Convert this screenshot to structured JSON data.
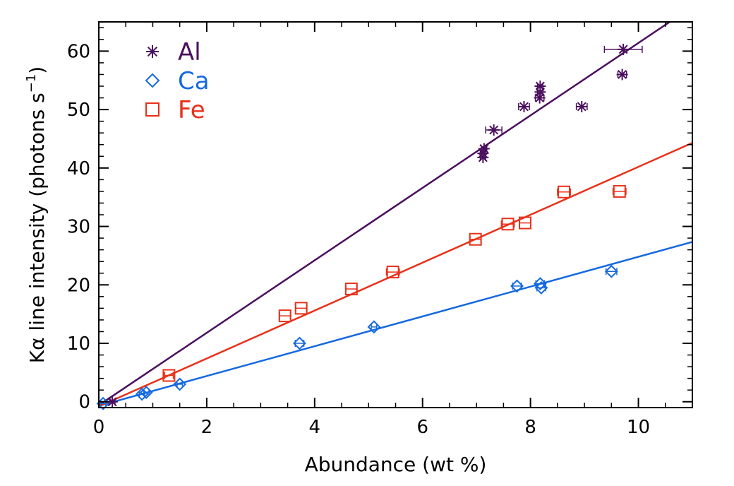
{
  "chart_data": {
    "type": "scatter",
    "title": "",
    "xlabel": "Abundance (wt %)",
    "ylabel_main": "Kα line intensity (photons s",
    "ylabel_sup": "−1",
    "ylabel_close": ")",
    "xlim": [
      0,
      11
    ],
    "ylim": [
      -1,
      65
    ],
    "x_ticks": [
      0,
      2,
      4,
      6,
      8,
      10
    ],
    "y_ticks": [
      0,
      10,
      20,
      30,
      40,
      50,
      60
    ],
    "legend_position": "top-left",
    "series": [
      {
        "name": "Al",
        "marker": "asterisk",
        "color": "#4b0f5e",
        "fit_slope": 6.2,
        "fit_intercept": -0.6,
        "points": [
          {
            "x": 0.25,
            "y": 0.0,
            "xerr": 0.05
          },
          {
            "x": 7.12,
            "y": 41.8,
            "xerr": 0.05
          },
          {
            "x": 7.12,
            "y": 42.5,
            "xerr": 0.05
          },
          {
            "x": 7.14,
            "y": 43.3,
            "xerr": 0.05
          },
          {
            "x": 7.32,
            "y": 46.5,
            "xerr": 0.15
          },
          {
            "x": 7.88,
            "y": 50.5,
            "xerr": 0.1
          },
          {
            "x": 8.17,
            "y": 52.0,
            "xerr": 0.08
          },
          {
            "x": 8.18,
            "y": 53.0,
            "xerr": 0.05
          },
          {
            "x": 8.18,
            "y": 54.0,
            "xerr": 0.05
          },
          {
            "x": 8.95,
            "y": 50.5,
            "xerr": 0.1
          },
          {
            "x": 9.7,
            "y": 56.0,
            "xerr": 0.08
          },
          {
            "x": 9.72,
            "y": 60.3,
            "xerr": 0.35
          }
        ]
      },
      {
        "name": "Ca",
        "marker": "diamond",
        "color": "#1569e0",
        "fit_slope": 2.55,
        "fit_intercept": -0.7,
        "points": [
          {
            "x": 0.08,
            "y": -0.3,
            "xerr": 0.05
          },
          {
            "x": 0.8,
            "y": 1.3,
            "xerr": 0.05
          },
          {
            "x": 0.88,
            "y": 1.6,
            "xerr": 0.05
          },
          {
            "x": 1.5,
            "y": 3.0,
            "xerr": 0.05
          },
          {
            "x": 3.72,
            "y": 10.0,
            "xerr": 0.08
          },
          {
            "x": 5.1,
            "y": 12.8,
            "xerr": 0.05
          },
          {
            "x": 7.75,
            "y": 19.8,
            "xerr": 0.08
          },
          {
            "x": 8.18,
            "y": 20.2,
            "xerr": 0.08
          },
          {
            "x": 8.2,
            "y": 19.5,
            "xerr": 0.08
          },
          {
            "x": 9.5,
            "y": 22.3,
            "xerr": 0.1
          }
        ]
      },
      {
        "name": "Fe",
        "marker": "square",
        "color": "#e8311a",
        "fit_slope": 4.1,
        "fit_intercept": -0.8,
        "points": [
          {
            "x": 1.3,
            "y": 4.5,
            "xerr": 0.08
          },
          {
            "x": 3.45,
            "y": 14.7,
            "xerr": 0.1
          },
          {
            "x": 3.75,
            "y": 16.0,
            "xerr": 0.1
          },
          {
            "x": 4.68,
            "y": 19.3,
            "xerr": 0.1
          },
          {
            "x": 5.45,
            "y": 22.2,
            "xerr": 0.12
          },
          {
            "x": 6.98,
            "y": 27.8,
            "xerr": 0.1
          },
          {
            "x": 7.58,
            "y": 30.4,
            "xerr": 0.12
          },
          {
            "x": 7.9,
            "y": 30.6,
            "xerr": 0.1
          },
          {
            "x": 8.62,
            "y": 35.9,
            "xerr": 0.12
          },
          {
            "x": 9.65,
            "y": 36.0,
            "xerr": 0.12
          }
        ]
      }
    ]
  }
}
